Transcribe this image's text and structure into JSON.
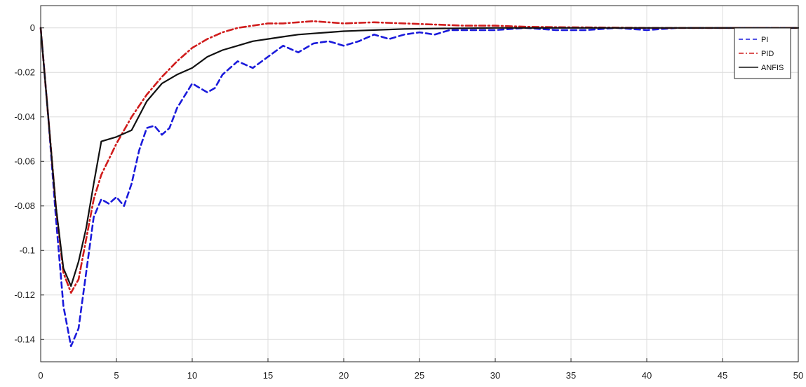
{
  "chart_data": {
    "type": "line",
    "title": "",
    "xlabel": "",
    "ylabel": "",
    "xlim": [
      0,
      50
    ],
    "ylim": [
      -0.15,
      0.01
    ],
    "xticks": [
      0,
      5,
      10,
      15,
      20,
      25,
      30,
      35,
      40,
      45,
      50
    ],
    "xtick_labels": [
      "0",
      "5",
      "10",
      "15",
      "20",
      "25",
      "30",
      "35",
      "40",
      "45",
      "50"
    ],
    "yticks": [
      0,
      -0.02,
      -0.04,
      -0.06,
      -0.08,
      -0.1,
      -0.12,
      -0.14
    ],
    "ytick_labels": [
      "0",
      "-0.02",
      "-0.04",
      "-0.06",
      "-0.08",
      "-0.1",
      "-0.12",
      "-0.14"
    ],
    "grid": true,
    "legend_position": "top-right",
    "series": [
      {
        "name": "PI",
        "color": "#1a1adb",
        "style": "dashed",
        "points": [
          [
            0,
            0
          ],
          [
            0.5,
            -0.04
          ],
          [
            1,
            -0.085
          ],
          [
            1.5,
            -0.125
          ],
          [
            2,
            -0.143
          ],
          [
            2.5,
            -0.135
          ],
          [
            3,
            -0.11
          ],
          [
            3.5,
            -0.085
          ],
          [
            4,
            -0.077
          ],
          [
            4.5,
            -0.079
          ],
          [
            5,
            -0.076
          ],
          [
            5.5,
            -0.08
          ],
          [
            6,
            -0.07
          ],
          [
            6.5,
            -0.055
          ],
          [
            7,
            -0.045
          ],
          [
            7.5,
            -0.044
          ],
          [
            8,
            -0.048
          ],
          [
            8.5,
            -0.045
          ],
          [
            9,
            -0.036
          ],
          [
            10,
            -0.025
          ],
          [
            10.5,
            -0.027
          ],
          [
            11,
            -0.029
          ],
          [
            11.5,
            -0.027
          ],
          [
            12,
            -0.021
          ],
          [
            13,
            -0.015
          ],
          [
            14,
            -0.018
          ],
          [
            15,
            -0.013
          ],
          [
            16,
            -0.008
          ],
          [
            17,
            -0.011
          ],
          [
            18,
            -0.007
          ],
          [
            19,
            -0.006
          ],
          [
            20,
            -0.008
          ],
          [
            21,
            -0.006
          ],
          [
            22,
            -0.003
          ],
          [
            23,
            -0.005
          ],
          [
            24,
            -0.003
          ],
          [
            25,
            -0.002
          ],
          [
            26,
            -0.003
          ],
          [
            27,
            -0.001
          ],
          [
            28,
            -0.001
          ],
          [
            30,
            -0.001
          ],
          [
            32,
            0
          ],
          [
            34,
            -0.001
          ],
          [
            36,
            -0.001
          ],
          [
            38,
            0
          ],
          [
            40,
            -0.001
          ],
          [
            42,
            0
          ],
          [
            44,
            0
          ],
          [
            46,
            0
          ],
          [
            48,
            0
          ],
          [
            50,
            0
          ]
        ]
      },
      {
        "name": "PID",
        "color": "#d01c1c",
        "style": "dashdot",
        "points": [
          [
            0,
            0
          ],
          [
            0.5,
            -0.04
          ],
          [
            1,
            -0.08
          ],
          [
            1.5,
            -0.11
          ],
          [
            2,
            -0.119
          ],
          [
            2.5,
            -0.113
          ],
          [
            3,
            -0.095
          ],
          [
            3.5,
            -0.077
          ],
          [
            4,
            -0.066
          ],
          [
            5,
            -0.052
          ],
          [
            6,
            -0.04
          ],
          [
            7,
            -0.03
          ],
          [
            8,
            -0.022
          ],
          [
            9,
            -0.015
          ],
          [
            10,
            -0.009
          ],
          [
            11,
            -0.005
          ],
          [
            12,
            -0.002
          ],
          [
            13,
            0
          ],
          [
            14,
            0.001
          ],
          [
            15,
            0.002
          ],
          [
            16,
            0.002
          ],
          [
            17,
            0.0025
          ],
          [
            18,
            0.003
          ],
          [
            19,
            0.0025
          ],
          [
            20,
            0.002
          ],
          [
            22,
            0.0025
          ],
          [
            24,
            0.002
          ],
          [
            26,
            0.0015
          ],
          [
            28,
            0.001
          ],
          [
            30,
            0.001
          ],
          [
            32,
            0.0005
          ],
          [
            34,
            0.0003
          ],
          [
            36,
            0.0002
          ],
          [
            38,
            0.0001
          ],
          [
            40,
            0
          ],
          [
            45,
            0
          ],
          [
            50,
            0
          ]
        ]
      },
      {
        "name": "ANFIS",
        "color": "#111111",
        "style": "solid",
        "points": [
          [
            0,
            0
          ],
          [
            0.5,
            -0.04
          ],
          [
            1,
            -0.08
          ],
          [
            1.5,
            -0.108
          ],
          [
            2,
            -0.116
          ],
          [
            2.5,
            -0.105
          ],
          [
            3,
            -0.09
          ],
          [
            3.5,
            -0.07
          ],
          [
            4,
            -0.051
          ],
          [
            5,
            -0.049
          ],
          [
            6,
            -0.046
          ],
          [
            7,
            -0.033
          ],
          [
            8,
            -0.025
          ],
          [
            9,
            -0.021
          ],
          [
            10,
            -0.018
          ],
          [
            11,
            -0.013
          ],
          [
            12,
            -0.01
          ],
          [
            13,
            -0.008
          ],
          [
            14,
            -0.006
          ],
          [
            15,
            -0.005
          ],
          [
            16,
            -0.004
          ],
          [
            17,
            -0.003
          ],
          [
            18,
            -0.0025
          ],
          [
            19,
            -0.002
          ],
          [
            20,
            -0.0015
          ],
          [
            22,
            -0.001
          ],
          [
            24,
            -0.0005
          ],
          [
            26,
            -0.0003
          ],
          [
            30,
            0
          ],
          [
            40,
            0
          ],
          [
            50,
            0
          ]
        ]
      }
    ]
  }
}
